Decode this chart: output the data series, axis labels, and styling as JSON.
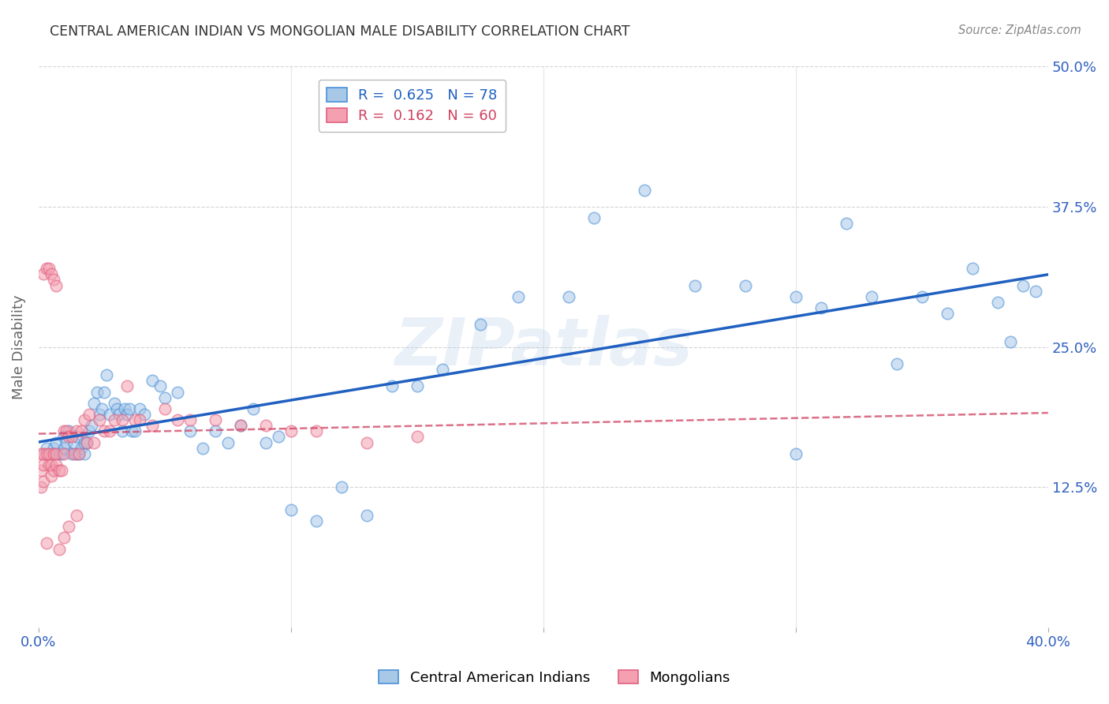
{
  "title": "CENTRAL AMERICAN INDIAN VS MONGOLIAN MALE DISABILITY CORRELATION CHART",
  "source": "Source: ZipAtlas.com",
  "ylabel": "Male Disability",
  "xlim": [
    0.0,
    0.4
  ],
  "ylim": [
    0.0,
    0.5
  ],
  "blue_R": 0.625,
  "blue_N": 78,
  "pink_R": 0.162,
  "pink_N": 60,
  "blue_color": "#a8c8e8",
  "pink_color": "#f4a0b0",
  "blue_edge_color": "#4a90d9",
  "pink_edge_color": "#e06080",
  "blue_line_color": "#2060c0",
  "pink_line_color": "#d04060",
  "grid_color": "#d0d0d0",
  "watermark": "ZIPatlas",
  "watermark_color": "#b8d0e8",
  "legend_label_blue": "Central American Indians",
  "legend_label_pink": "Mongolians",
  "tick_label_color": "#3060c0",
  "axis_label_color": "#666666",
  "background_color": "#ffffff",
  "blue_x": [
    0.003,
    0.005,
    0.006,
    0.007,
    0.008,
    0.009,
    0.01,
    0.01,
    0.011,
    0.012,
    0.013,
    0.014,
    0.015,
    0.015,
    0.016,
    0.017,
    0.018,
    0.018,
    0.019,
    0.02,
    0.021,
    0.022,
    0.023,
    0.024,
    0.025,
    0.026,
    0.027,
    0.028,
    0.03,
    0.031,
    0.032,
    0.033,
    0.034,
    0.035,
    0.036,
    0.037,
    0.038,
    0.04,
    0.042,
    0.045,
    0.048,
    0.05,
    0.055,
    0.06,
    0.065,
    0.07,
    0.075,
    0.08,
    0.085,
    0.09,
    0.095,
    0.1,
    0.11,
    0.12,
    0.13,
    0.14,
    0.15,
    0.16,
    0.175,
    0.19,
    0.21,
    0.22,
    0.24,
    0.26,
    0.28,
    0.3,
    0.31,
    0.32,
    0.33,
    0.34,
    0.35,
    0.36,
    0.37,
    0.38,
    0.385,
    0.39,
    0.395,
    0.3
  ],
  "blue_y": [
    0.16,
    0.155,
    0.16,
    0.165,
    0.155,
    0.155,
    0.17,
    0.16,
    0.165,
    0.175,
    0.155,
    0.165,
    0.17,
    0.155,
    0.155,
    0.16,
    0.155,
    0.165,
    0.165,
    0.175,
    0.18,
    0.2,
    0.21,
    0.19,
    0.195,
    0.21,
    0.225,
    0.19,
    0.2,
    0.195,
    0.19,
    0.175,
    0.195,
    0.19,
    0.195,
    0.175,
    0.175,
    0.195,
    0.19,
    0.22,
    0.215,
    0.205,
    0.21,
    0.175,
    0.16,
    0.175,
    0.165,
    0.18,
    0.195,
    0.165,
    0.17,
    0.105,
    0.095,
    0.125,
    0.1,
    0.215,
    0.215,
    0.23,
    0.27,
    0.295,
    0.295,
    0.365,
    0.39,
    0.305,
    0.305,
    0.295,
    0.285,
    0.36,
    0.295,
    0.235,
    0.295,
    0.28,
    0.32,
    0.29,
    0.255,
    0.305,
    0.3,
    0.155
  ],
  "pink_x": [
    0.001,
    0.001,
    0.001,
    0.002,
    0.002,
    0.002,
    0.003,
    0.003,
    0.004,
    0.004,
    0.005,
    0.005,
    0.006,
    0.006,
    0.007,
    0.007,
    0.008,
    0.009,
    0.01,
    0.01,
    0.011,
    0.012,
    0.013,
    0.014,
    0.015,
    0.016,
    0.017,
    0.018,
    0.019,
    0.02,
    0.022,
    0.024,
    0.026,
    0.028,
    0.03,
    0.033,
    0.035,
    0.038,
    0.04,
    0.045,
    0.05,
    0.055,
    0.06,
    0.07,
    0.08,
    0.09,
    0.1,
    0.11,
    0.13,
    0.15,
    0.002,
    0.003,
    0.004,
    0.005,
    0.006,
    0.007,
    0.008,
    0.01,
    0.012,
    0.015
  ],
  "pink_y": [
    0.155,
    0.14,
    0.125,
    0.145,
    0.13,
    0.155,
    0.155,
    0.075,
    0.145,
    0.155,
    0.135,
    0.145,
    0.14,
    0.155,
    0.155,
    0.145,
    0.14,
    0.14,
    0.175,
    0.155,
    0.175,
    0.17,
    0.17,
    0.155,
    0.175,
    0.155,
    0.175,
    0.185,
    0.165,
    0.19,
    0.165,
    0.185,
    0.175,
    0.175,
    0.185,
    0.185,
    0.215,
    0.185,
    0.185,
    0.18,
    0.195,
    0.185,
    0.185,
    0.185,
    0.18,
    0.18,
    0.175,
    0.175,
    0.165,
    0.17,
    0.315,
    0.32,
    0.32,
    0.315,
    0.31,
    0.305,
    0.07,
    0.08,
    0.09,
    0.1
  ]
}
